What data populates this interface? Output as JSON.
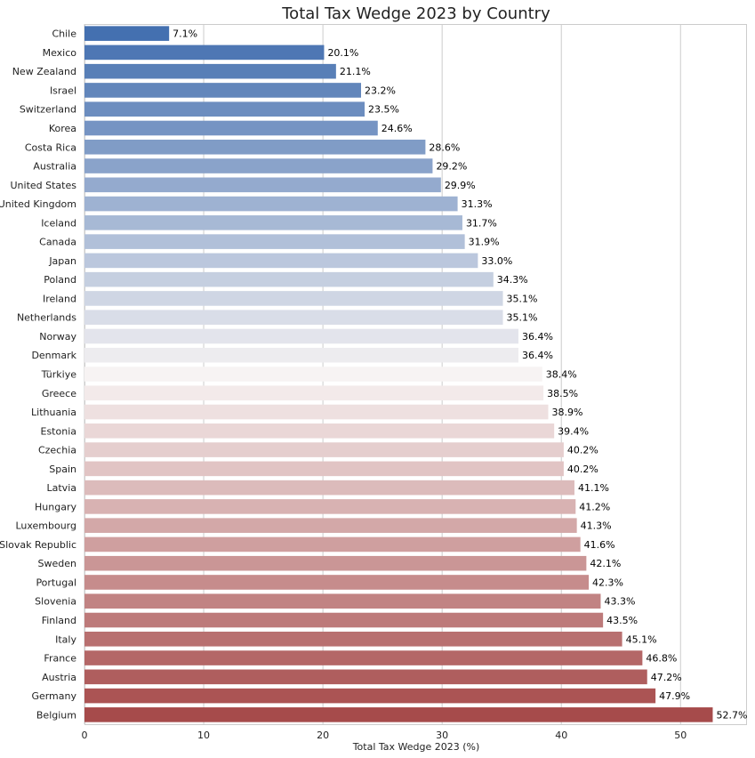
{
  "chart_data": {
    "type": "bar",
    "orientation": "horizontal",
    "title": "Total Tax Wedge 2023 by Country",
    "xlabel": "Total Tax Wedge 2023 (%)",
    "ylabel": "",
    "xlim": [
      0,
      55.5
    ],
    "xticks": [
      0,
      10,
      20,
      30,
      40,
      50
    ],
    "grid": "x",
    "value_suffix": "%",
    "color_start": "#4470b0",
    "color_mid": "#f7f3f3",
    "color_end": "#a64b4b",
    "categories": [
      "Chile",
      "Mexico",
      "New Zealand",
      "Israel",
      "Switzerland",
      "Korea",
      "Costa Rica",
      "Australia",
      "United States",
      "United Kingdom",
      "Iceland",
      "Canada",
      "Japan",
      "Poland",
      "Ireland",
      "Netherlands",
      "Norway",
      "Denmark",
      "Türkiye",
      "Greece",
      "Lithuania",
      "Estonia",
      "Czechia",
      "Spain",
      "Latvia",
      "Hungary",
      "Luxembourg",
      "Slovak Republic",
      "Sweden",
      "Portugal",
      "Slovenia",
      "Finland",
      "Italy",
      "France",
      "Austria",
      "Germany",
      "Belgium"
    ],
    "values": [
      7.1,
      20.1,
      21.1,
      23.2,
      23.5,
      24.6,
      28.6,
      29.2,
      29.9,
      31.3,
      31.7,
      31.9,
      33.0,
      34.3,
      35.1,
      35.1,
      36.4,
      36.4,
      38.4,
      38.5,
      38.9,
      39.4,
      40.2,
      40.2,
      41.1,
      41.2,
      41.3,
      41.6,
      42.1,
      42.3,
      43.3,
      43.5,
      45.1,
      46.8,
      47.2,
      47.9,
      52.7
    ]
  }
}
